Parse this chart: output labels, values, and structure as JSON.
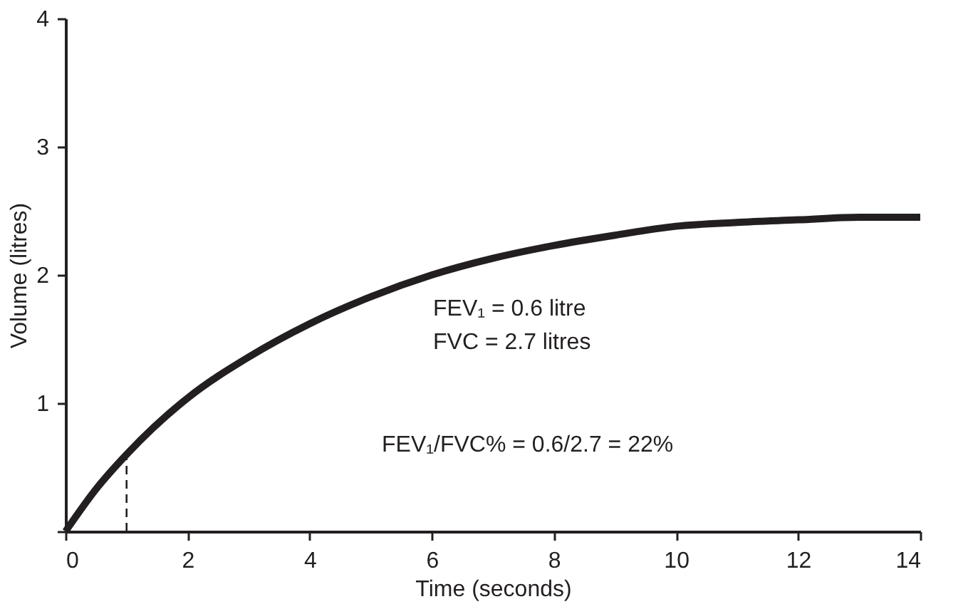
{
  "chart_data": {
    "type": "line",
    "xlabel": "Time (seconds)",
    "ylabel": "Volume (litres)",
    "x": [
      0,
      0.5,
      1,
      2,
      3,
      4,
      5,
      6,
      7,
      8,
      9,
      10,
      11,
      12,
      13,
      14
    ],
    "series": [
      {
        "color": "#231f20",
        "values": [
          0,
          0.33,
          0.6,
          1.04,
          1.36,
          1.62,
          1.83,
          2.0,
          2.13,
          2.23,
          2.31,
          2.38,
          2.41,
          2.43,
          2.45,
          2.45
        ]
      }
    ],
    "xlim": [
      0,
      14
    ],
    "xticks": [
      0,
      2,
      4,
      6,
      8,
      10,
      12,
      14
    ],
    "ylim": [
      0,
      4
    ],
    "yticks": [
      {
        "value": 0,
        "label": null
      },
      1,
      2,
      3,
      4
    ],
    "grid": false,
    "marker": "none",
    "line_style": "solid",
    "ref_lines": [
      {
        "axis": "x",
        "value": 1,
        "line_style": "dashed",
        "color": "#231f20"
      }
    ],
    "annotations": [
      "FEV₁ = 0.6 litre",
      "FVC  = 2.7 litres",
      "FEV₁/FVC% = 0.6/2.7 = 22%"
    ]
  }
}
